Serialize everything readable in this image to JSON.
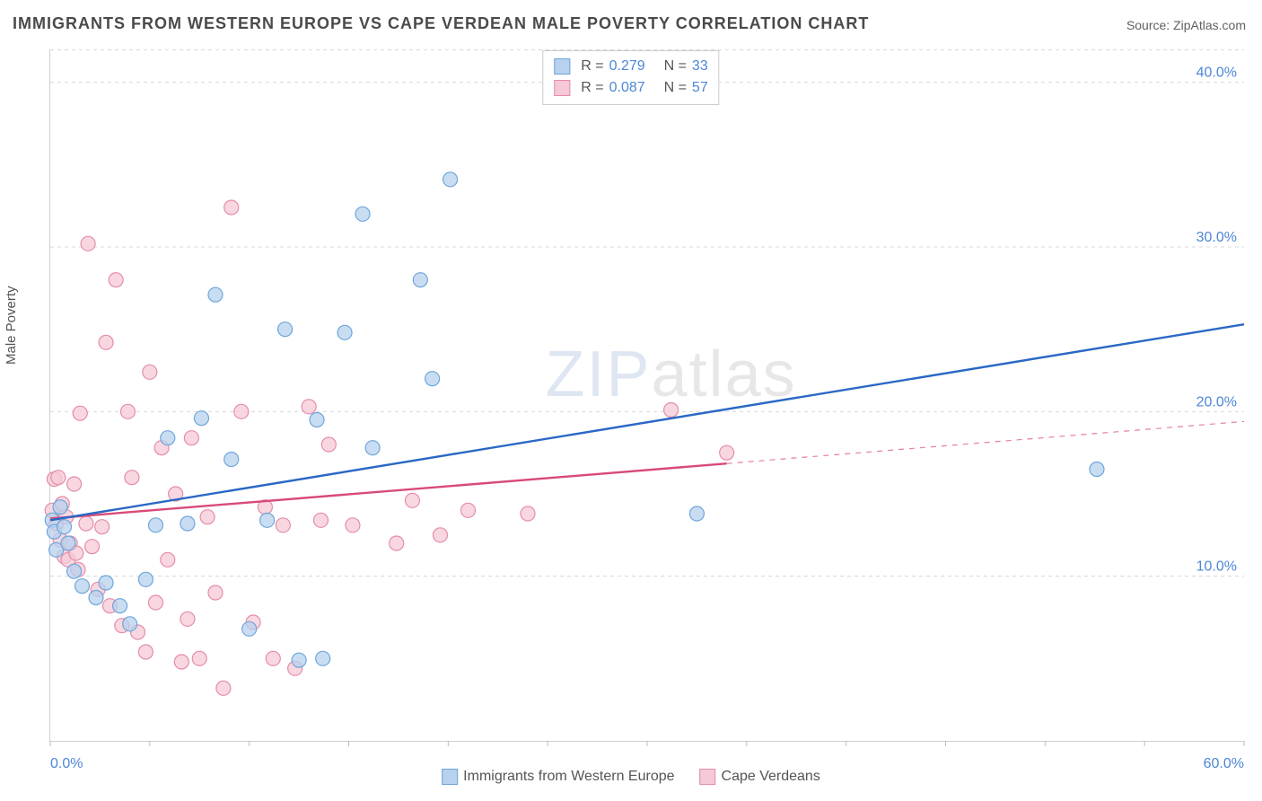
{
  "title": "IMMIGRANTS FROM WESTERN EUROPE VS CAPE VERDEAN MALE POVERTY CORRELATION CHART",
  "source_label": "Source: ZipAtlas.com",
  "y_axis_label": "Male Poverty",
  "watermark_bold": "ZIP",
  "watermark_thin": "atlas",
  "chart": {
    "type": "scatter-with-regression",
    "xlim": [
      0,
      60
    ],
    "ylim": [
      0,
      42
    ],
    "background_color": "#ffffff",
    "grid_color": "#d8d8d8",
    "grid_dash": "4 4",
    "y_gridlines": [
      10,
      20,
      30,
      40
    ],
    "y_tick_labels": [
      "10.0%",
      "20.0%",
      "30.0%",
      "40.0%"
    ],
    "x_tick_min_label": "0.0%",
    "x_tick_max_label": "60.0%",
    "tick_color": "#4d86d6",
    "tick_fontsize": 16,
    "marker_radius": 8,
    "marker_stroke_width": 1.2,
    "reg_line_width": 2.4,
    "series": [
      {
        "id": "western_europe",
        "label": "Immigrants from Western Europe",
        "R_label": "R =",
        "N_label": "N =",
        "R": "0.279",
        "N": "33",
        "color_fill": "#b7d1ee",
        "color_stroke": "#6ea6da",
        "reg_color": "#2a68c5",
        "regression": {
          "x1": 0,
          "y1": 13.4,
          "x2": 60,
          "y2": 25.3,
          "dashed_from_x": 60
        },
        "points": [
          [
            0.1,
            13.4
          ],
          [
            0.2,
            12.7
          ],
          [
            0.3,
            11.6
          ],
          [
            0.5,
            14.2
          ],
          [
            0.7,
            13.0
          ],
          [
            0.9,
            12.0
          ],
          [
            1.2,
            10.3
          ],
          [
            1.6,
            9.4
          ],
          [
            2.3,
            8.7
          ],
          [
            2.8,
            9.6
          ],
          [
            3.5,
            8.2
          ],
          [
            4.0,
            7.1
          ],
          [
            4.8,
            9.8
          ],
          [
            5.3,
            13.1
          ],
          [
            5.9,
            18.4
          ],
          [
            6.9,
            13.2
          ],
          [
            7.6,
            19.6
          ],
          [
            8.3,
            27.1
          ],
          [
            9.1,
            17.1
          ],
          [
            10.0,
            6.8
          ],
          [
            10.9,
            13.4
          ],
          [
            11.8,
            25.0
          ],
          [
            12.5,
            4.9
          ],
          [
            13.4,
            19.5
          ],
          [
            13.7,
            5.0
          ],
          [
            14.8,
            24.8
          ],
          [
            15.7,
            32.0
          ],
          [
            16.2,
            17.8
          ],
          [
            18.6,
            28.0
          ],
          [
            19.2,
            22.0
          ],
          [
            20.1,
            34.1
          ],
          [
            32.5,
            13.8
          ],
          [
            52.6,
            16.5
          ]
        ]
      },
      {
        "id": "cape_verdeans",
        "label": "Cape Verdeans",
        "R_label": "R =",
        "N_label": "N =",
        "R": "0.087",
        "N": "57",
        "color_fill": "#f6c9d6",
        "color_stroke": "#e58ca8",
        "reg_color": "#d84a78",
        "regression": {
          "x1": 0,
          "y1": 13.5,
          "x2": 60,
          "y2": 19.4,
          "dashed_from_x": 34
        },
        "points": [
          [
            0.1,
            14.0
          ],
          [
            0.2,
            15.9
          ],
          [
            0.3,
            13.2
          ],
          [
            0.4,
            16.0
          ],
          [
            0.5,
            12.2
          ],
          [
            0.6,
            14.4
          ],
          [
            0.7,
            11.2
          ],
          [
            0.8,
            13.6
          ],
          [
            0.9,
            11.0
          ],
          [
            1.0,
            12.0
          ],
          [
            1.2,
            15.6
          ],
          [
            1.3,
            11.4
          ],
          [
            1.4,
            10.4
          ],
          [
            1.5,
            19.9
          ],
          [
            1.8,
            13.2
          ],
          [
            1.9,
            30.2
          ],
          [
            2.1,
            11.8
          ],
          [
            2.4,
            9.2
          ],
          [
            2.6,
            13.0
          ],
          [
            2.8,
            24.2
          ],
          [
            3.0,
            8.2
          ],
          [
            3.3,
            28.0
          ],
          [
            3.6,
            7.0
          ],
          [
            3.9,
            20.0
          ],
          [
            4.1,
            16.0
          ],
          [
            4.4,
            6.6
          ],
          [
            4.8,
            5.4
          ],
          [
            5.0,
            22.4
          ],
          [
            5.3,
            8.4
          ],
          [
            5.6,
            17.8
          ],
          [
            5.9,
            11.0
          ],
          [
            6.3,
            15.0
          ],
          [
            6.6,
            4.8
          ],
          [
            6.9,
            7.4
          ],
          [
            7.1,
            18.4
          ],
          [
            7.5,
            5.0
          ],
          [
            7.9,
            13.6
          ],
          [
            8.3,
            9.0
          ],
          [
            8.7,
            3.2
          ],
          [
            9.1,
            32.4
          ],
          [
            9.6,
            20.0
          ],
          [
            10.2,
            7.2
          ],
          [
            10.8,
            14.2
          ],
          [
            11.2,
            5.0
          ],
          [
            11.7,
            13.1
          ],
          [
            12.3,
            4.4
          ],
          [
            13.0,
            20.3
          ],
          [
            13.6,
            13.4
          ],
          [
            14.0,
            18.0
          ],
          [
            15.2,
            13.1
          ],
          [
            17.4,
            12.0
          ],
          [
            18.2,
            14.6
          ],
          [
            19.6,
            12.5
          ],
          [
            21.0,
            14.0
          ],
          [
            24.0,
            13.8
          ],
          [
            31.2,
            20.1
          ],
          [
            34.0,
            17.5
          ]
        ]
      }
    ]
  },
  "legend_bottom": [
    {
      "label": "Immigrants from Western Europe",
      "fill": "#b7d1ee",
      "stroke": "#6ea6da"
    },
    {
      "label": "Cape Verdeans",
      "fill": "#f6c9d6",
      "stroke": "#e58ca8"
    }
  ]
}
